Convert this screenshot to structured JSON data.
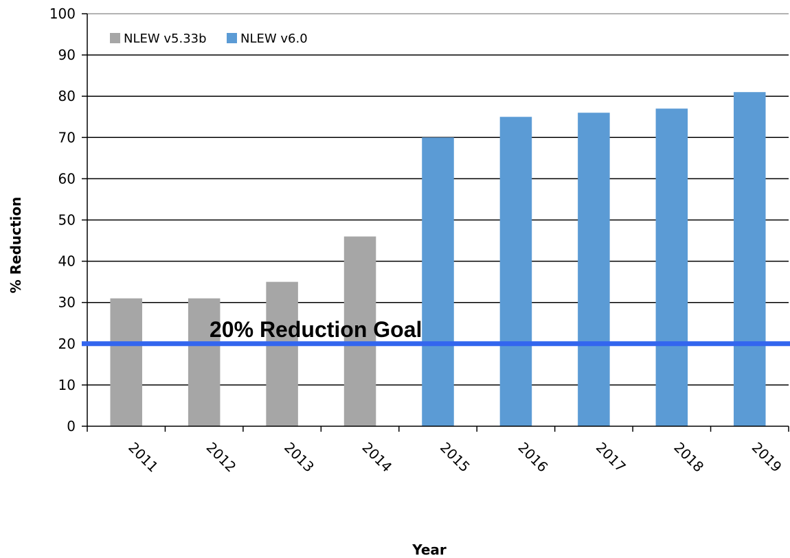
{
  "chart_data": {
    "type": "bar",
    "title": "",
    "xlabel": "Year",
    "ylabel": "% Reduction",
    "ylim": [
      0,
      100
    ],
    "yticks": [
      0,
      10,
      20,
      30,
      40,
      50,
      60,
      70,
      80,
      90,
      100
    ],
    "categories": [
      "2011",
      "2012",
      "2013",
      "2014",
      "2015",
      "2016",
      "2017",
      "2018",
      "2019"
    ],
    "series": [
      {
        "name": "NLEW v5.33b",
        "color": "#a6a6a6",
        "values": [
          31,
          31,
          35,
          46,
          null,
          null,
          null,
          null,
          null
        ]
      },
      {
        "name": "NLEW v6.0",
        "color": "#5b9bd5",
        "values": [
          null,
          null,
          null,
          null,
          70,
          75,
          76,
          77,
          81
        ]
      }
    ],
    "reference_line": {
      "value": 20,
      "label": "20% Reduction Goal",
      "color": "#3366ee"
    },
    "grid": true,
    "legend": "top-left"
  }
}
